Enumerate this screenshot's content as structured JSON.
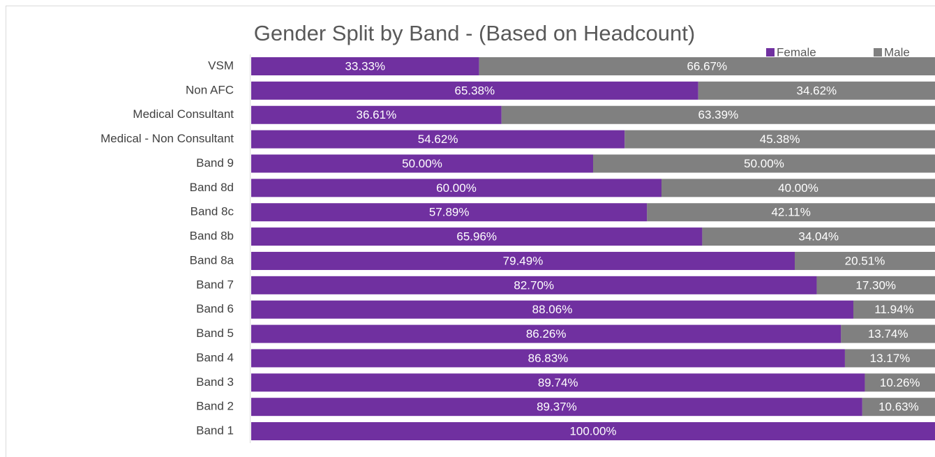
{
  "chart_data": {
    "type": "stacked_barh",
    "title": "Gender Split by Band - (Based on Headcount)",
    "categories": [
      "VSM",
      "Non AFC",
      "Medical Consultant",
      "Medical - Non Consultant",
      "Band 9",
      "Band 8d",
      "Band 8c",
      "Band 8b",
      "Band 8a",
      "Band 7",
      "Band 6",
      "Band 5",
      "Band 4",
      "Band 3",
      "Band 2",
      "Band 1"
    ],
    "series": [
      {
        "name": "Female",
        "color": "#7030a0",
        "values": [
          33.33,
          65.38,
          36.61,
          54.62,
          50.0,
          60.0,
          57.89,
          65.96,
          79.49,
          82.7,
          88.06,
          86.26,
          86.83,
          89.74,
          89.37,
          100.0
        ],
        "value_labels": [
          "33.33%",
          "65.38%",
          "36.61%",
          "54.62%",
          "50.00%",
          "60.00%",
          "57.89%",
          "65.96%",
          "79.49%",
          "82.70%",
          "88.06%",
          "86.26%",
          "86.83%",
          "89.74%",
          "89.37%",
          "100.00%"
        ]
      },
      {
        "name": "Male",
        "color": "#808080",
        "values": [
          66.67,
          34.62,
          63.39,
          45.38,
          50.0,
          40.0,
          42.11,
          34.04,
          20.51,
          17.3,
          11.94,
          13.74,
          13.17,
          10.26,
          10.63,
          0
        ],
        "value_labels": [
          "66.67%",
          "34.62%",
          "63.39%",
          "45.38%",
          "50.00%",
          "40.00%",
          "42.11%",
          "34.04%",
          "20.51%",
          "17.30%",
          "11.94%",
          "13.74%",
          "13.17%",
          "10.26%",
          "10.63%",
          null
        ]
      }
    ],
    "xlim": [
      0,
      100
    ],
    "legend": "top-right"
  }
}
